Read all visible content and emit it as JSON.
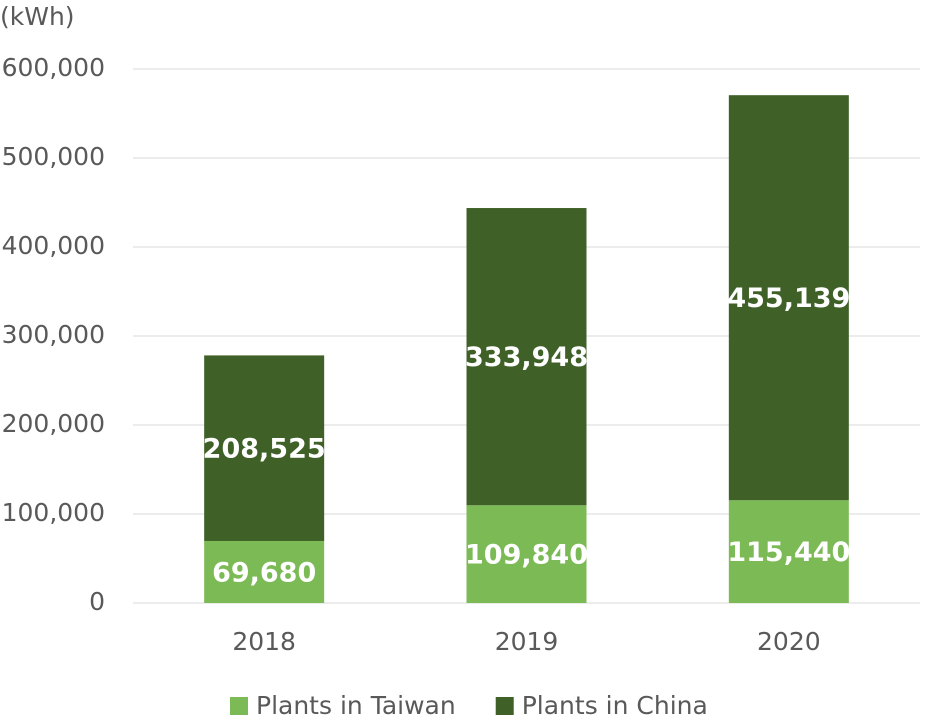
{
  "chart_data": {
    "type": "stacked_bar",
    "y_axis_label": "(kWh)",
    "categories": [
      "2018",
      "2019",
      "2020"
    ],
    "series": [
      {
        "name": "Plants in Taiwan",
        "color": "#7cba56",
        "values": [
          69680,
          109840,
          115440
        ],
        "value_labels": [
          "69,680",
          "109,840",
          "115,440"
        ]
      },
      {
        "name": "Plants in China",
        "color": "#3f6128",
        "values": [
          208525,
          333948,
          455139
        ],
        "value_labels": [
          "208,525",
          "333,948",
          "455,139"
        ]
      }
    ],
    "ylim": [
      0,
      600000
    ],
    "yticks": [
      0,
      {
        "value": 100000,
        "label": "100,000"
      },
      {
        "value": 200000,
        "label": "200,000"
      },
      {
        "value": 300000,
        "label": "300,000"
      },
      {
        "value": 400000,
        "label": "400,000"
      },
      {
        "value": 500000,
        "label": "500,000"
      },
      {
        "value": 600000,
        "label": "600,000"
      }
    ],
    "grid": true,
    "legend": "bottom"
  }
}
